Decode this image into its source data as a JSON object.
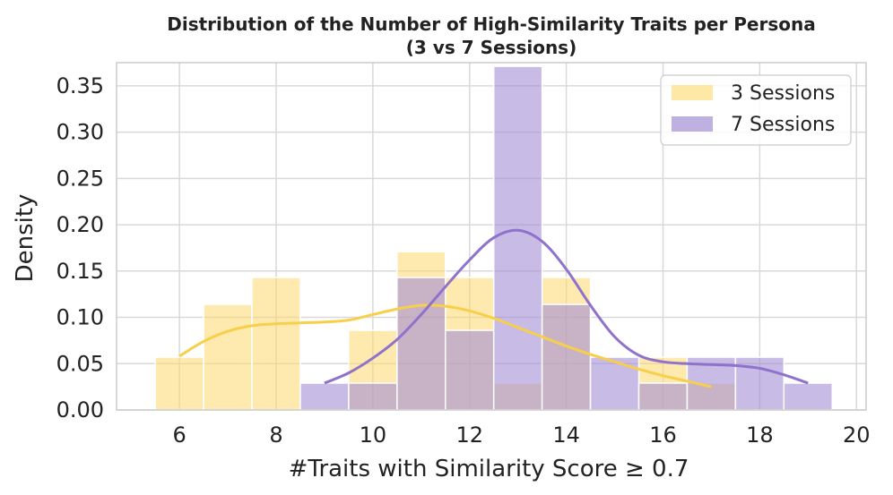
{
  "chart_data": {
    "type": "histogram",
    "title": "Distribution of the Number of High-Similarity Traits per Persona",
    "subtitle": "(3 vs 7 Sessions)",
    "xlabel": "#Traits with Similarity Score ≥ 0.7",
    "ylabel": "Density",
    "xlim": [
      4.7,
      20.2
    ],
    "ylim": [
      0,
      0.375
    ],
    "xticks": [
      6,
      8,
      10,
      12,
      14,
      16,
      18,
      20
    ],
    "yticks": [
      0.0,
      0.05,
      0.1,
      0.15,
      0.2,
      0.25,
      0.3,
      0.35
    ],
    "ytick_labels": [
      "0.00",
      "0.05",
      "0.10",
      "0.15",
      "0.20",
      "0.25",
      "0.30",
      "0.35"
    ],
    "grid": true,
    "legend_position": "top-right",
    "series": [
      {
        "name": "3 Sessions",
        "color": "#fdd96b",
        "bin_width": 1,
        "bins": [
          {
            "x0": 5.5,
            "x1": 6.5,
            "density": 0.057
          },
          {
            "x0": 6.5,
            "x1": 7.5,
            "density": 0.114
          },
          {
            "x0": 7.5,
            "x1": 8.5,
            "density": 0.143
          },
          {
            "x0": 8.5,
            "x1": 9.5,
            "density": 0.0
          },
          {
            "x0": 9.5,
            "x1": 10.5,
            "density": 0.086
          },
          {
            "x0": 10.5,
            "x1": 11.5,
            "density": 0.171
          },
          {
            "x0": 11.5,
            "x1": 12.5,
            "density": 0.143
          },
          {
            "x0": 12.5,
            "x1": 13.5,
            "density": 0.029
          },
          {
            "x0": 13.5,
            "x1": 14.5,
            "density": 0.143
          },
          {
            "x0": 14.5,
            "x1": 15.5,
            "density": 0.0
          },
          {
            "x0": 15.5,
            "x1": 16.5,
            "density": 0.057
          },
          {
            "x0": 16.5,
            "x1": 17.5,
            "density": 0.029
          }
        ],
        "kde": {
          "x": [
            6.0,
            6.5,
            7.0,
            7.5,
            8.0,
            8.5,
            9.0,
            9.5,
            10.0,
            10.5,
            11.0,
            11.5,
            12.0,
            12.5,
            13.0,
            13.5,
            14.0,
            14.5,
            15.0,
            15.5,
            16.0,
            16.5,
            17.0
          ],
          "y": [
            0.058,
            0.074,
            0.085,
            0.091,
            0.093,
            0.094,
            0.095,
            0.097,
            0.103,
            0.109,
            0.113,
            0.112,
            0.107,
            0.099,
            0.089,
            0.079,
            0.069,
            0.06,
            0.052,
            0.044,
            0.037,
            0.031,
            0.025
          ]
        }
      },
      {
        "name": "7 Sessions",
        "color": "#a48ed6",
        "bin_width": 1,
        "bins": [
          {
            "x0": 8.5,
            "x1": 9.5,
            "density": 0.029
          },
          {
            "x0": 9.5,
            "x1": 10.5,
            "density": 0.029
          },
          {
            "x0": 10.5,
            "x1": 11.5,
            "density": 0.143
          },
          {
            "x0": 11.5,
            "x1": 12.5,
            "density": 0.086
          },
          {
            "x0": 12.5,
            "x1": 13.5,
            "density": 0.371
          },
          {
            "x0": 13.5,
            "x1": 14.5,
            "density": 0.114
          },
          {
            "x0": 14.5,
            "x1": 15.5,
            "density": 0.057
          },
          {
            "x0": 15.5,
            "x1": 16.5,
            "density": 0.029
          },
          {
            "x0": 16.5,
            "x1": 17.5,
            "density": 0.057
          },
          {
            "x0": 17.5,
            "x1": 18.5,
            "density": 0.057
          },
          {
            "x0": 18.5,
            "x1": 19.5,
            "density": 0.029
          }
        ],
        "kde": {
          "x": [
            9.0,
            9.5,
            10.0,
            10.5,
            11.0,
            11.5,
            12.0,
            12.5,
            13.0,
            13.5,
            14.0,
            14.5,
            15.0,
            15.5,
            16.0,
            16.5,
            17.0,
            17.5,
            18.0,
            18.5,
            19.0
          ],
          "y": [
            0.029,
            0.04,
            0.056,
            0.076,
            0.103,
            0.133,
            0.162,
            0.186,
            0.194,
            0.182,
            0.152,
            0.113,
            0.079,
            0.059,
            0.052,
            0.05,
            0.049,
            0.048,
            0.045,
            0.038,
            0.029
          ]
        }
      }
    ]
  }
}
